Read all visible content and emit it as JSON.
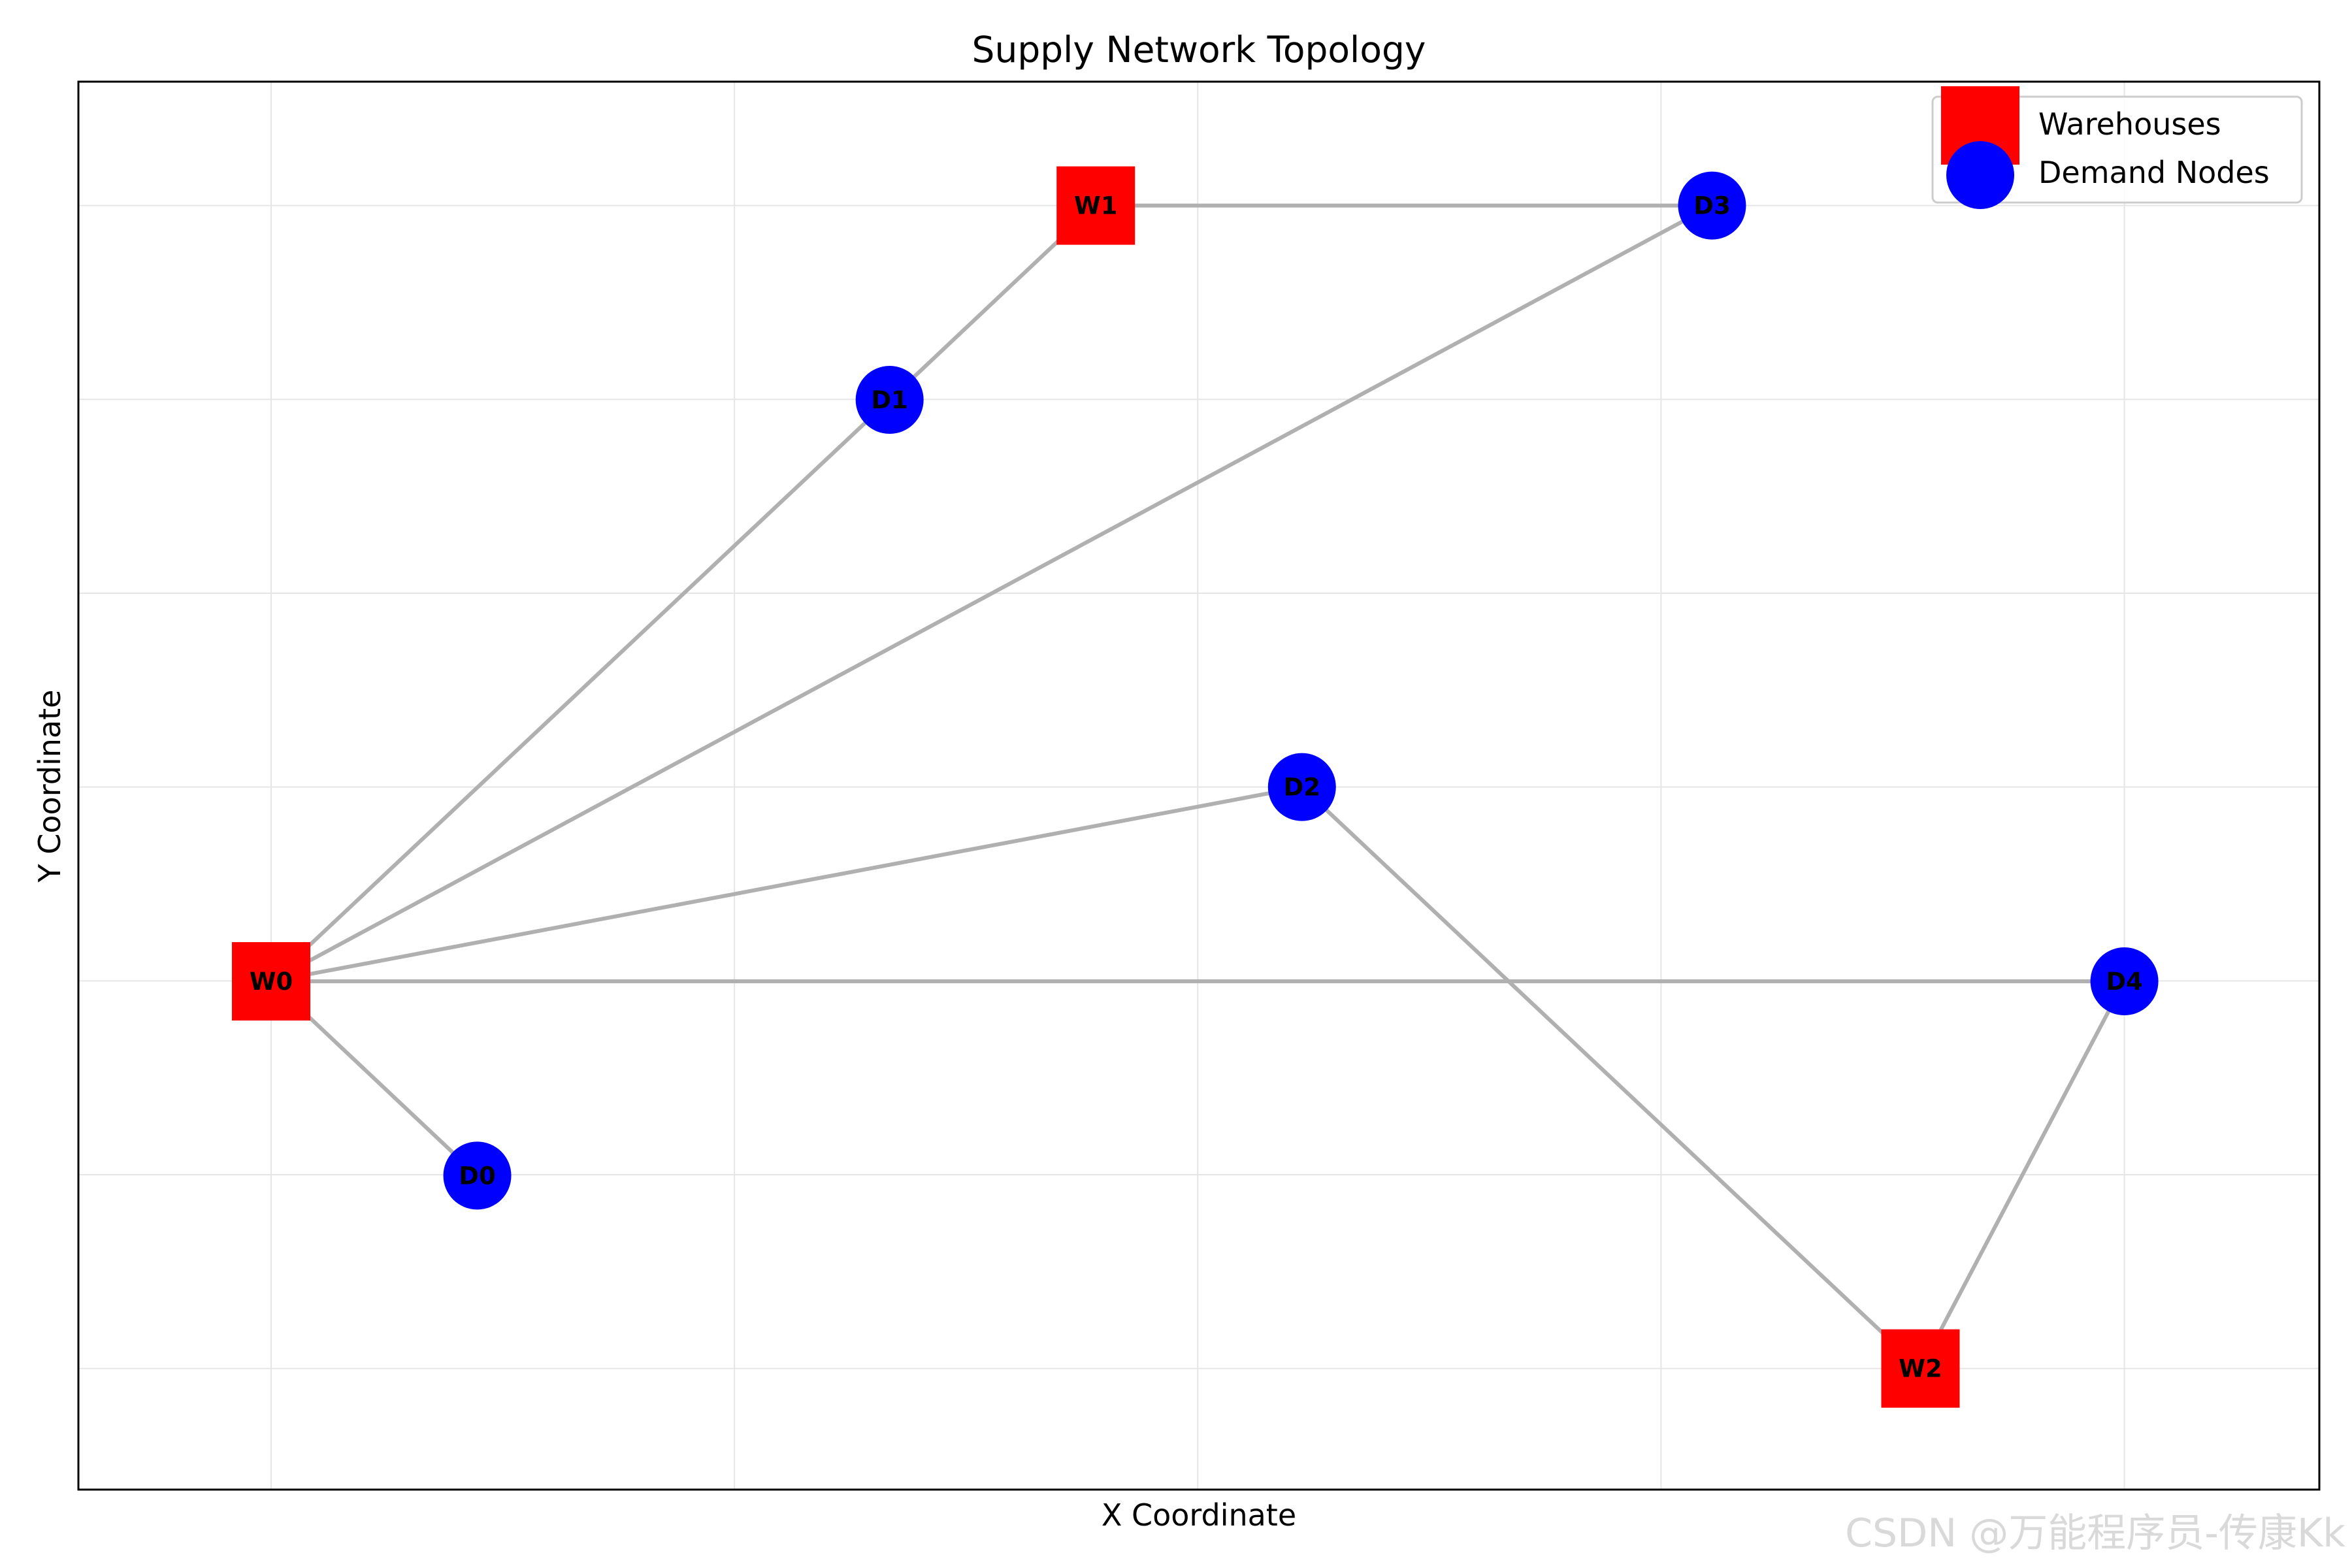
{
  "chart_data": {
    "type": "scatter",
    "title": "Supply Network Topology",
    "xlabel": "X Coordinate",
    "ylabel": "Y Coordinate",
    "xlim": [
      0,
      100
    ],
    "ylim": [
      0,
      100
    ],
    "grid": true,
    "axis_ticks": "hidden",
    "legend": {
      "placement": "top-right",
      "entries": [
        {
          "label": "Warehouses",
          "marker": "square",
          "color": "#ff0000"
        },
        {
          "label": "Demand Nodes",
          "marker": "circle",
          "color": "#0000ff"
        }
      ]
    },
    "nodes": [
      {
        "id": "W0",
        "label": "W0",
        "kind": "warehouse",
        "x": 8.6,
        "y": 36.1
      },
      {
        "id": "W1",
        "label": "W1",
        "kind": "warehouse",
        "x": 45.4,
        "y": 91.2
      },
      {
        "id": "W2",
        "label": "W2",
        "kind": "warehouse",
        "x": 82.2,
        "y": 8.6
      },
      {
        "id": "D0",
        "label": "D0",
        "kind": "demand",
        "x": 17.8,
        "y": 22.3
      },
      {
        "id": "D1",
        "label": "D1",
        "kind": "demand",
        "x": 36.2,
        "y": 77.4
      },
      {
        "id": "D2",
        "label": "D2",
        "kind": "demand",
        "x": 54.6,
        "y": 49.9
      },
      {
        "id": "D3",
        "label": "D3",
        "kind": "demand",
        "x": 72.9,
        "y": 91.2
      },
      {
        "id": "D4",
        "label": "D4",
        "kind": "demand",
        "x": 91.3,
        "y": 36.1
      }
    ],
    "edges": [
      [
        "W0",
        "D0"
      ],
      [
        "W0",
        "D1"
      ],
      [
        "W0",
        "D2"
      ],
      [
        "W0",
        "D3"
      ],
      [
        "W0",
        "D4"
      ],
      [
        "W1",
        "D1"
      ],
      [
        "W1",
        "D3"
      ],
      [
        "W2",
        "D2"
      ],
      [
        "W2",
        "D4"
      ]
    ],
    "colors": {
      "warehouse": "#ff0000",
      "demand": "#0000ff",
      "edge": "#b0b0b0",
      "grid": "#e5e5e5"
    }
  },
  "watermark": "CSDN @万能程序员-传康Kk"
}
